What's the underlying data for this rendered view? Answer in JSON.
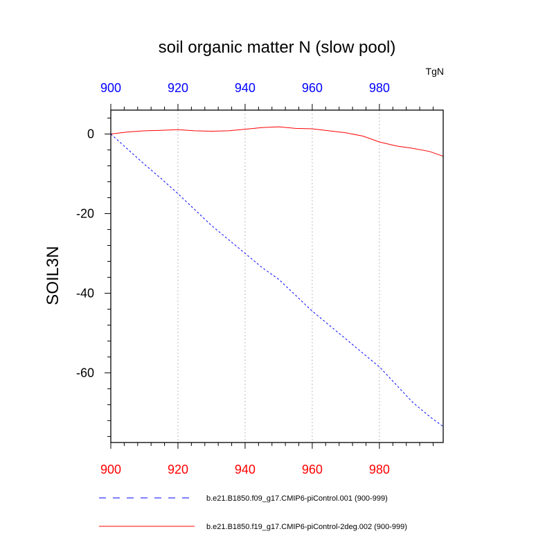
{
  "chart_data": {
    "type": "line",
    "title": "soil organic matter N (slow pool)",
    "units": "TgN",
    "xlabel": "",
    "ylabel": "SOIL3N",
    "xlim": [
      900,
      999
    ],
    "ylim": [
      -77.5,
      6
    ],
    "x_ticks": [
      900,
      920,
      940,
      960,
      980
    ],
    "x_tick_labels": [
      "900",
      "920",
      "940",
      "960",
      "980"
    ],
    "y_ticks": [
      0,
      -20,
      -40,
      -60
    ],
    "y_tick_labels": [
      "0",
      "-20",
      "-40",
      "-60"
    ],
    "grid": "vertical dotted at major x ticks",
    "colors": {
      "top_axis_labels": "#0000ff",
      "bottom_axis_labels": "#ff0000",
      "series_1": "#0000ff",
      "series_2": "#ff0000",
      "grid": "#bbbbbb"
    },
    "series": [
      {
        "name": "b.e21.B1850.f09_g17.CMIP6-piControl.001 (900-999)",
        "color": "#0000ff",
        "dash": "dashed",
        "x": [
          900,
          905,
          910,
          915,
          920,
          925,
          930,
          935,
          940,
          945,
          950,
          955,
          960,
          965,
          970,
          975,
          980,
          985,
          990,
          995,
          999
        ],
        "y": [
          0,
          -3.8,
          -7.6,
          -11.2,
          -15,
          -19,
          -23,
          -26.5,
          -30,
          -33.5,
          -36.5,
          -40.5,
          -44.5,
          -48,
          -51.5,
          -55,
          -58.5,
          -63,
          -67.5,
          -71,
          -73.5
        ]
      },
      {
        "name": "b.e21.B1850.f19_g17.CMIP6-piControl-2deg.002 (900-999)",
        "color": "#ff0000",
        "dash": "solid",
        "x": [
          900,
          905,
          910,
          915,
          920,
          925,
          930,
          935,
          940,
          945,
          950,
          955,
          960,
          965,
          970,
          975,
          980,
          985,
          990,
          995,
          999
        ],
        "y": [
          0,
          0.5,
          0.8,
          0.9,
          1.1,
          0.8,
          0.7,
          0.8,
          1.2,
          1.6,
          1.8,
          1.4,
          1.3,
          0.8,
          0.3,
          -0.5,
          -2.0,
          -3.0,
          -3.6,
          -4.4,
          -5.6
        ]
      }
    ],
    "legend": "bottom"
  }
}
